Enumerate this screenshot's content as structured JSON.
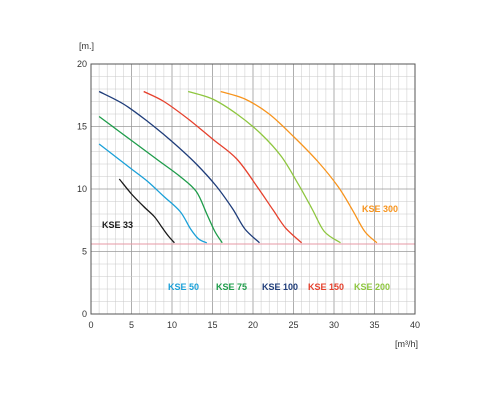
{
  "chart_data": {
    "type": "line",
    "title": "",
    "ylabel": "[m.]",
    "xlabel": "[m³/h]",
    "xlim": [
      0,
      40
    ],
    "ylim": [
      0,
      20
    ],
    "x_ticks": [
      "0",
      "5",
      "10",
      "15",
      "20",
      "25",
      "30",
      "35",
      "40"
    ],
    "y_ticks": [
      "0",
      "5",
      "10",
      "15",
      "20"
    ],
    "grid": true,
    "reference_line": {
      "y": 5.6,
      "color": "#e79aa6"
    },
    "series": [
      {
        "name": "KSE 33",
        "color": "#1a1a1a",
        "points": [
          [
            3.5,
            10.8
          ],
          [
            5.0,
            9.6
          ],
          [
            6.5,
            8.6
          ],
          [
            7.8,
            7.8
          ],
          [
            8.8,
            6.9
          ],
          [
            9.6,
            6.2
          ],
          [
            10.3,
            5.7
          ]
        ]
      },
      {
        "name": "KSE 50",
        "color": "#1aa0d8",
        "points": [
          [
            1.0,
            13.6
          ],
          [
            3.0,
            12.6
          ],
          [
            5.0,
            11.6
          ],
          [
            7.0,
            10.6
          ],
          [
            9.0,
            9.4
          ],
          [
            11.0,
            8.2
          ],
          [
            12.3,
            6.8
          ],
          [
            13.3,
            6.0
          ],
          [
            14.3,
            5.7
          ]
        ]
      },
      {
        "name": "KSE 75",
        "color": "#1e9c4a",
        "points": [
          [
            1.0,
            15.8
          ],
          [
            3.5,
            14.6
          ],
          [
            6.0,
            13.4
          ],
          [
            8.5,
            12.2
          ],
          [
            11.0,
            11.0
          ],
          [
            13.0,
            9.8
          ],
          [
            14.3,
            8.0
          ],
          [
            15.3,
            6.6
          ],
          [
            16.2,
            5.7
          ]
        ]
      },
      {
        "name": "KSE 100",
        "color": "#1f3d7a",
        "points": [
          [
            1.0,
            17.8
          ],
          [
            4.0,
            16.8
          ],
          [
            7.0,
            15.4
          ],
          [
            10.0,
            13.8
          ],
          [
            13.0,
            12.0
          ],
          [
            15.5,
            10.2
          ],
          [
            17.5,
            8.4
          ],
          [
            19.0,
            6.8
          ],
          [
            20.8,
            5.7
          ]
        ]
      },
      {
        "name": "KSE 150",
        "color": "#e6412d",
        "points": [
          [
            6.5,
            17.8
          ],
          [
            9.0,
            17.0
          ],
          [
            12.0,
            15.6
          ],
          [
            15.0,
            14.0
          ],
          [
            18.0,
            12.4
          ],
          [
            20.5,
            10.2
          ],
          [
            22.5,
            8.3
          ],
          [
            24.0,
            6.9
          ],
          [
            26.0,
            5.7
          ]
        ]
      },
      {
        "name": "KSE 200",
        "color": "#8ec63f",
        "points": [
          [
            12.0,
            17.8
          ],
          [
            15.0,
            17.2
          ],
          [
            18.0,
            16.0
          ],
          [
            21.0,
            14.4
          ],
          [
            23.5,
            12.6
          ],
          [
            25.5,
            10.5
          ],
          [
            27.3,
            8.4
          ],
          [
            28.8,
            6.6
          ],
          [
            30.8,
            5.7
          ]
        ]
      },
      {
        "name": "KSE 300",
        "color": "#f7941d",
        "points": [
          [
            16.0,
            17.8
          ],
          [
            19.0,
            17.2
          ],
          [
            22.0,
            16.0
          ],
          [
            25.0,
            14.2
          ],
          [
            28.0,
            12.2
          ],
          [
            30.5,
            10.2
          ],
          [
            32.3,
            8.3
          ],
          [
            33.8,
            6.6
          ],
          [
            35.3,
            5.7
          ]
        ]
      }
    ],
    "legend": [
      {
        "text": "KSE 33",
        "color": "#1a1a1a"
      },
      {
        "text": "KSE 50",
        "color": "#1aa0d8"
      },
      {
        "text": "KSE 75",
        "color": "#1e9c4a"
      },
      {
        "text": "KSE 100",
        "color": "#1f3d7a"
      },
      {
        "text": "KSE 150",
        "color": "#e6412d"
      },
      {
        "text": "KSE 200",
        "color": "#8ec63f"
      },
      {
        "text": "KSE 300",
        "color": "#f7941d"
      }
    ]
  }
}
